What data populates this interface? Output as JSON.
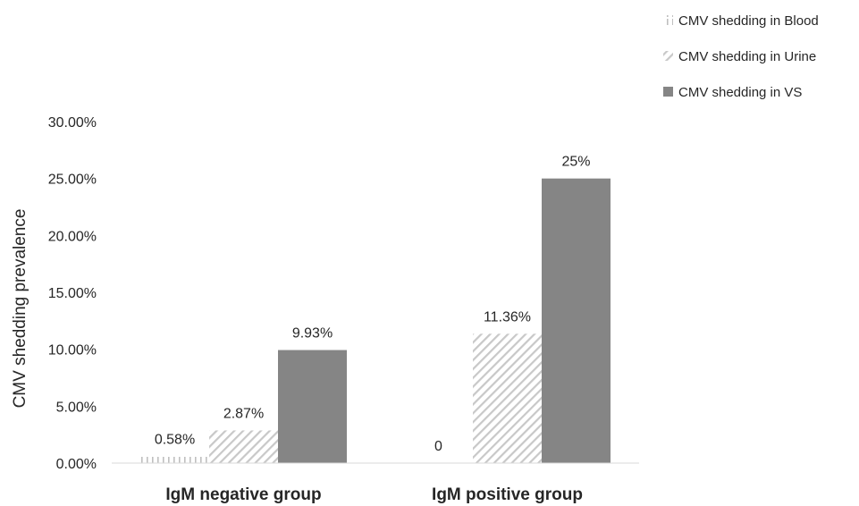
{
  "chart_data": {
    "type": "bar",
    "categories": [
      "IgM negative group",
      "IgM positive group"
    ],
    "series": [
      {
        "name": "CMV shedding in Blood",
        "values": [
          0.58,
          0
        ],
        "labels": [
          "0.58%",
          "0"
        ],
        "pattern": "vertical-dash",
        "color": "#bfbfbf"
      },
      {
        "name": "CMV shedding in Urine",
        "values": [
          2.87,
          11.36
        ],
        "labels": [
          "2.87%",
          "11.36%"
        ],
        "pattern": "diagonal-hatch",
        "color": "#c8c8c8"
      },
      {
        "name": "CMV shedding in VS",
        "values": [
          9.93,
          25
        ],
        "labels": [
          "9.93%",
          "25%"
        ],
        "pattern": "solid",
        "color": "#858585"
      }
    ],
    "ylabel": "CMV shedding prevalence",
    "xlabel": "",
    "ylim": [
      0,
      30
    ],
    "yticks": [
      "0.00%",
      "5.00%",
      "10.00%",
      "15.00%",
      "20.00%",
      "25.00%",
      "30.00%"
    ],
    "grid": false,
    "legend_position": "top-right"
  }
}
